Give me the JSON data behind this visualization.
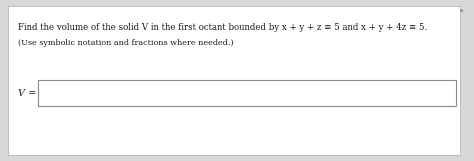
{
  "line1": "Find the volume of the solid V in the first octant bounded by x + y + z ≡ 5 and x + y + 4z ≡ 5.",
  "line2": "(Use symbolic notation and fractions where needed.)",
  "label": "V =",
  "outer_bg": "#d8d8d8",
  "inner_bg": "#ffffff",
  "text_color": "#1a1a1a",
  "box_edge_color": "#888888",
  "font_size_main": 6.2,
  "font_size_sub": 5.8,
  "font_size_label": 7.0,
  "asterisk": "*"
}
